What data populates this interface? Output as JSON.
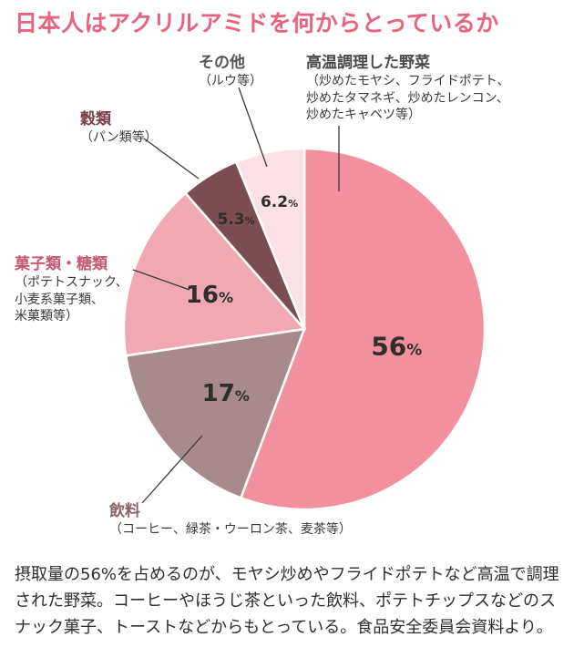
{
  "title": "日本人はアクリルアミドを何からとっているか",
  "chart_data": {
    "type": "pie",
    "slices": [
      {
        "key": "veg",
        "name": "高温調理した野菜",
        "detail": [
          "（炒めたモヤシ、フライドポテト、",
          "炒めたタマネギ、炒めたレンコン、",
          "炒めたキャベツ等）"
        ],
        "value": 56,
        "label": "56",
        "color": "#f2909f",
        "text_color": "#2e2e2e"
      },
      {
        "key": "drink",
        "name": "飲料",
        "detail": [
          "（コーヒー、緑茶・ウーロン茶、麦茶等）"
        ],
        "value": 17,
        "label": "17",
        "color": "#a88a8d",
        "text_color": "#2e2e2e"
      },
      {
        "key": "snack",
        "name": "菓子類・糖類",
        "detail": [
          "（ポテトスナック、",
          "小麦系菓子類、",
          "米菓類等）"
        ],
        "value": 16,
        "label": "16",
        "color": "#f0a8b3",
        "text_color": "#2e2e2e"
      },
      {
        "key": "grain",
        "name": "穀類",
        "detail": [
          "（パン類等）"
        ],
        "value": 5.3,
        "label": "5.3",
        "color": "#7b4d52",
        "text_color": "#2e2e2e"
      },
      {
        "key": "other",
        "name": "その他",
        "detail": [
          "（ルウ等）"
        ],
        "value": 6.2,
        "label": "6.2",
        "color": "#fbe1e5",
        "text_color": "#2e2e2e"
      }
    ],
    "unit": "%"
  },
  "caption": "摂取量の56%を占めるのが、モヤシ炒めやフライドポテトなど高温で調理された野菜。コーヒーやほうじ茶といった飲料、ポテトチップスなどのスナック菓子、トーストなどからもとっている。食品安全委員会資料より。"
}
